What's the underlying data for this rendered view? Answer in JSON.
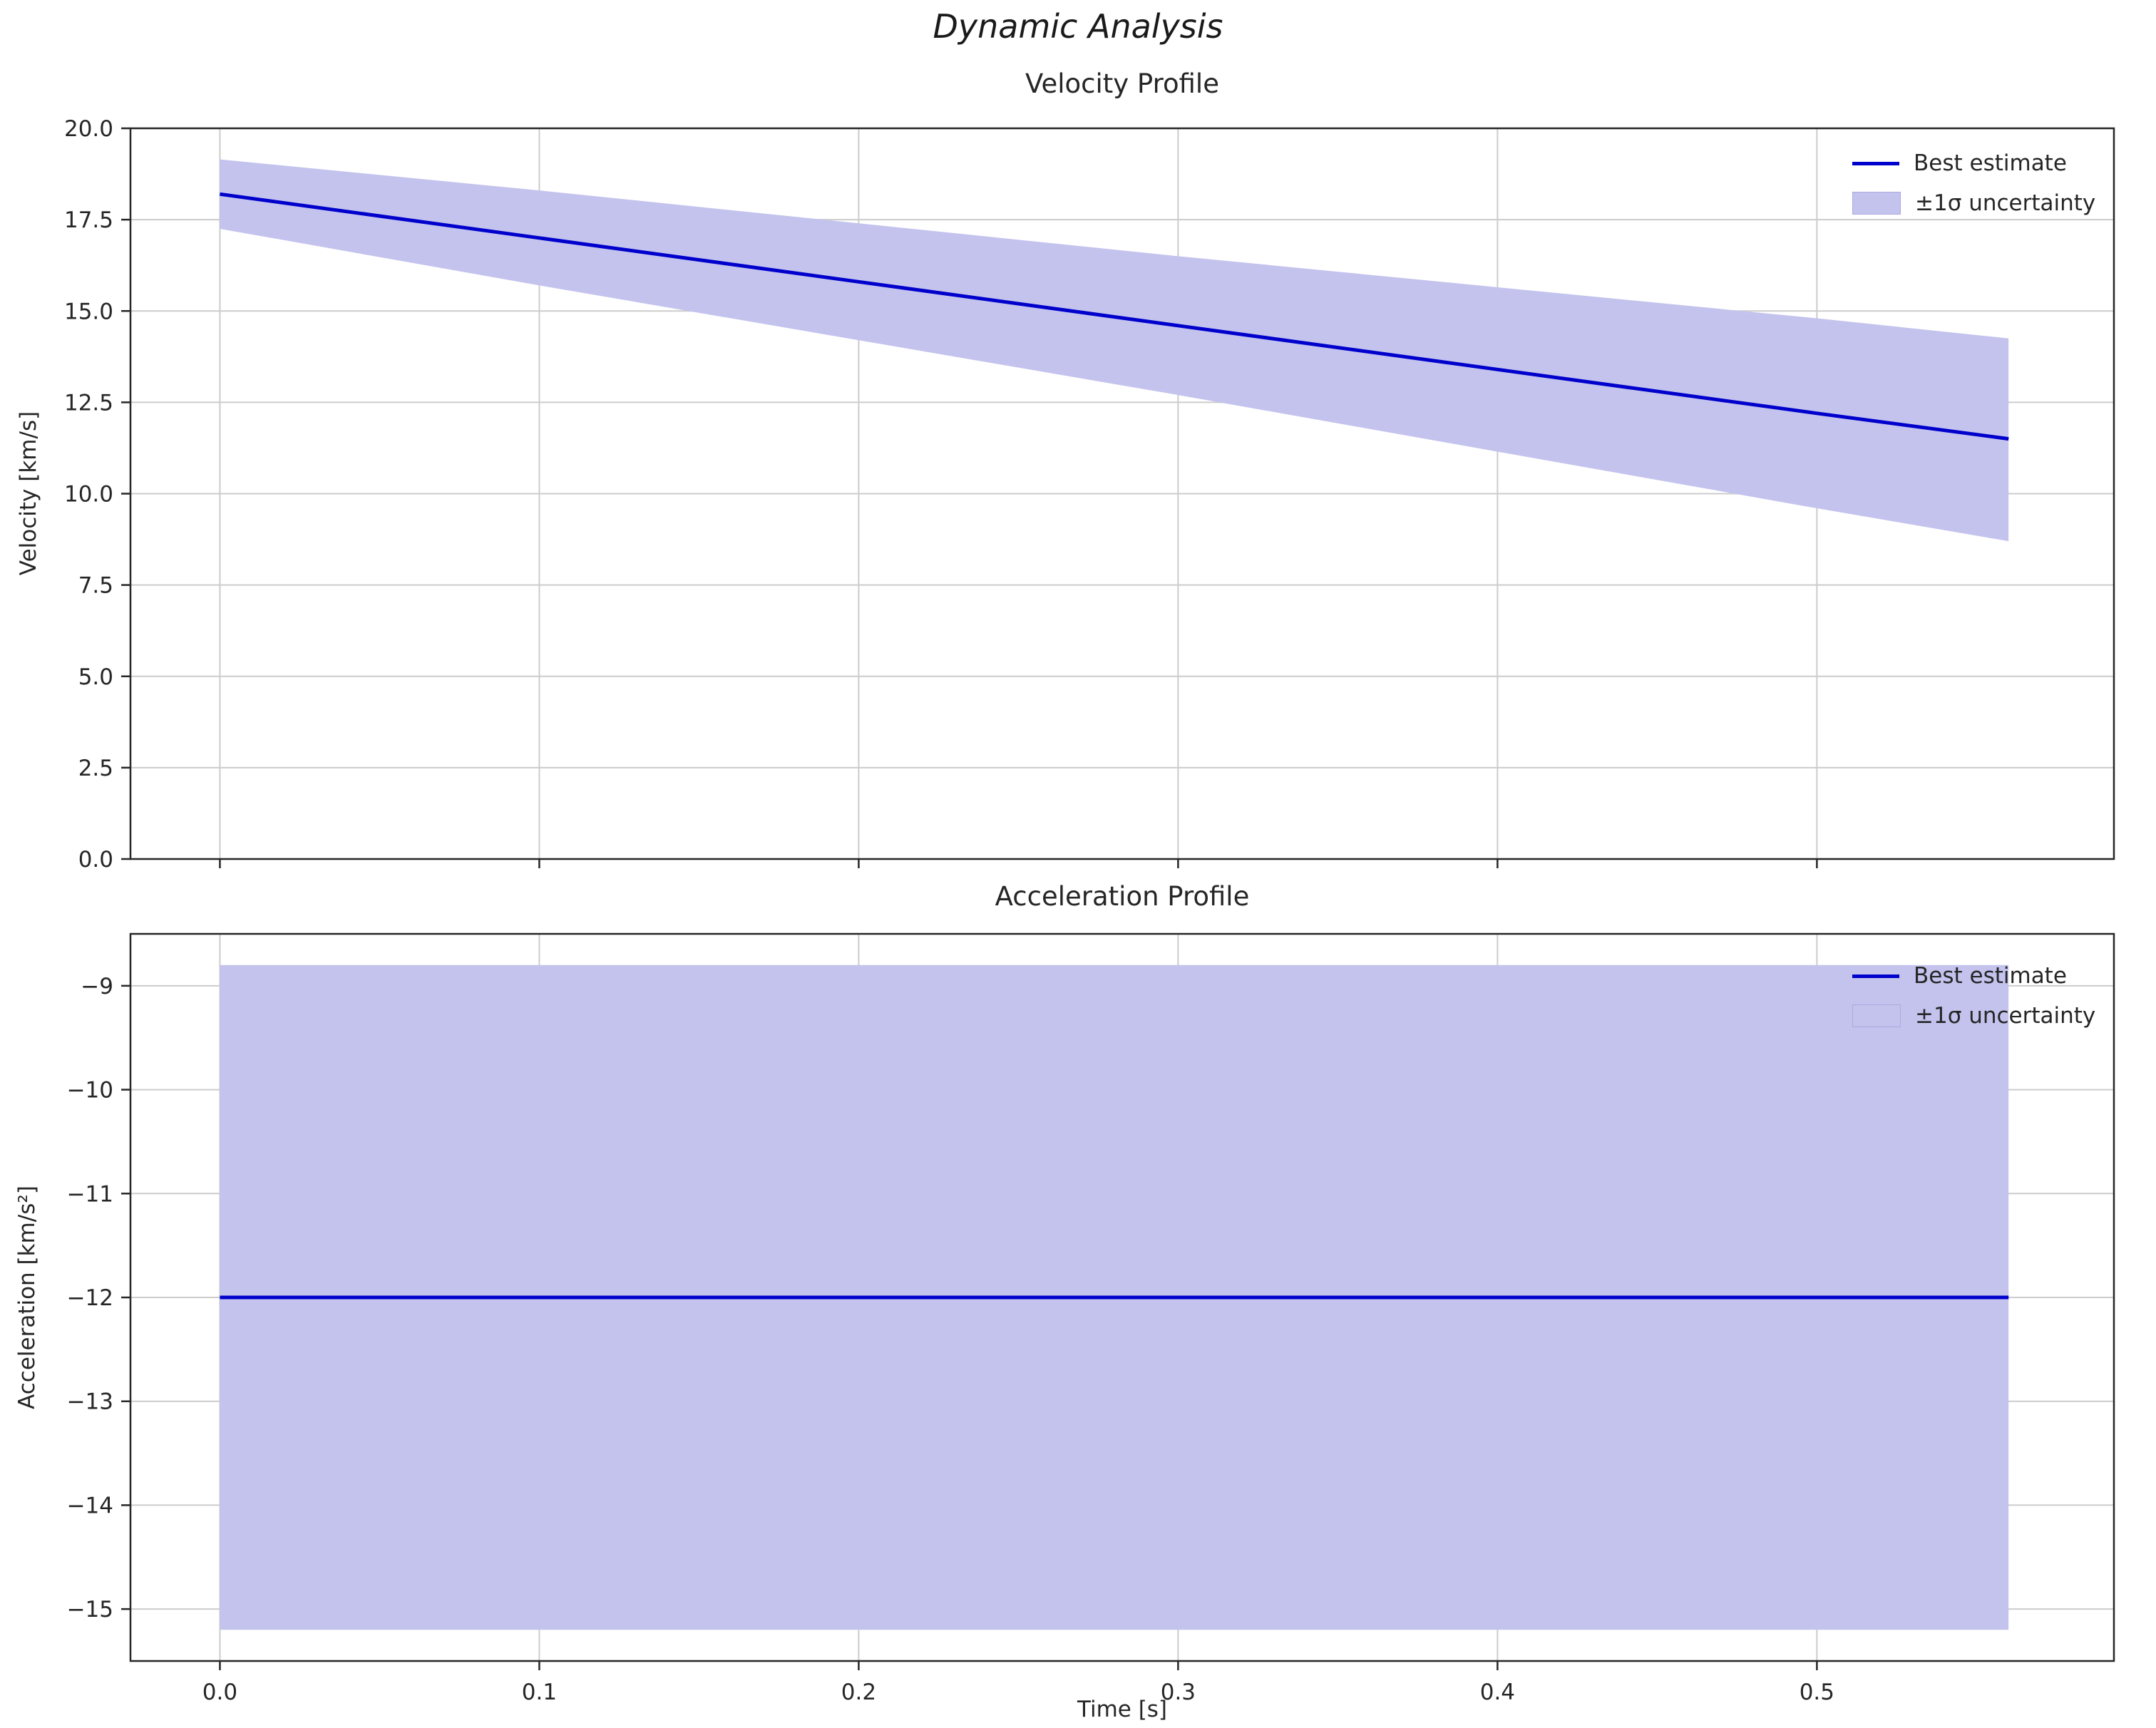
{
  "figure": {
    "title": "Dynamic Analysis"
  },
  "colors": {
    "line": "#0000cc",
    "band": "#c3c3ee",
    "band_edge": "#aaaae0",
    "grid": "#cccccc",
    "spine": "#262626",
    "text": "#262626"
  },
  "chart_data": [
    {
      "type": "line",
      "title": "Velocity Profile",
      "ylabel": "Velocity [km/s]",
      "xlabel": "",
      "legend": [
        "Best estimate",
        "±1σ uncertainty"
      ],
      "legend_position": "upper right",
      "grid": true,
      "xlim": [
        -0.028,
        0.593
      ],
      "ylim": [
        0,
        20
      ],
      "xticks": {
        "values": [
          0,
          0.1,
          0.2,
          0.3,
          0.4,
          0.5
        ],
        "labels": [
          "0.0",
          "0.1",
          "0.2",
          "0.3",
          "0.4",
          "0.5"
        ],
        "show_labels": false
      },
      "yticks": {
        "values": [
          0,
          2.5,
          5,
          7.5,
          10,
          12.5,
          15,
          17.5,
          20
        ],
        "labels": [
          "0.0",
          "2.5",
          "5.0",
          "7.5",
          "10.0",
          "12.5",
          "15.0",
          "17.5",
          "20.0"
        ]
      },
      "x": [
        0,
        0.1,
        0.2,
        0.3,
        0.4,
        0.5,
        0.56
      ],
      "series": [
        {
          "name": "Best estimate",
          "values": [
            18.2,
            17.0,
            15.8,
            14.6,
            13.4,
            12.2,
            11.5
          ]
        }
      ],
      "band": {
        "name": "±1σ uncertainty",
        "upper": [
          19.15,
          18.3,
          17.4,
          16.5,
          15.65,
          14.8,
          14.25
        ],
        "lower": [
          17.25,
          15.7,
          14.2,
          12.7,
          11.15,
          9.6,
          8.7
        ]
      }
    },
    {
      "type": "line",
      "title": "Acceleration Profile",
      "ylabel": "Acceleration [km/s²]",
      "xlabel": "Time [s]",
      "legend": [
        "Best estimate",
        "±1σ uncertainty"
      ],
      "legend_position": "upper right",
      "grid": true,
      "xlim": [
        -0.028,
        0.593
      ],
      "ylim": [
        -15.5,
        -8.5
      ],
      "xticks": {
        "values": [
          0,
          0.1,
          0.2,
          0.3,
          0.4,
          0.5
        ],
        "labels": [
          "0.0",
          "0.1",
          "0.2",
          "0.3",
          "0.4",
          "0.5"
        ],
        "show_labels": true
      },
      "yticks": {
        "values": [
          -9,
          -10,
          -11,
          -12,
          -13,
          -14,
          -15
        ],
        "labels": [
          "−9",
          "−10",
          "−11",
          "−12",
          "−13",
          "−14",
          "−15"
        ]
      },
      "x": [
        0,
        0.56
      ],
      "series": [
        {
          "name": "Best estimate",
          "values": [
            -12,
            -12
          ]
        }
      ],
      "band": {
        "name": "±1σ uncertainty",
        "upper": [
          -8.8,
          -8.8
        ],
        "lower": [
          -15.2,
          -15.2
        ]
      }
    }
  ]
}
